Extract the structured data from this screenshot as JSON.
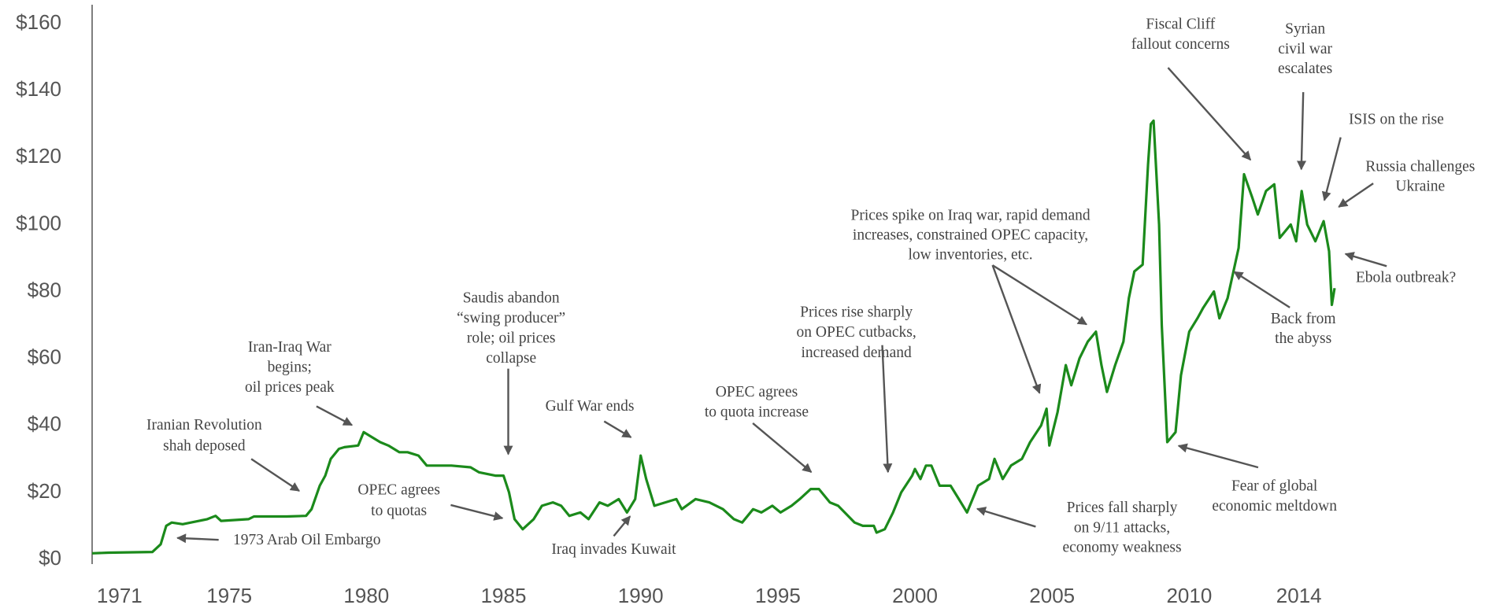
{
  "chart_data": {
    "type": "line",
    "color": "#1b8a1b",
    "x": [
      1970.0,
      1970.6,
      1972.2,
      1972.5,
      1972.7,
      1972.9,
      1973.3,
      1973.6,
      1974.2,
      1974.5,
      1974.7,
      1975.7,
      1975.9,
      1977.1,
      1977.8,
      1978.0,
      1978.3,
      1978.5,
      1978.7,
      1979.0,
      1979.2,
      1979.7,
      1979.9,
      1980.1,
      1980.5,
      1980.8,
      1981.2,
      1981.5,
      1981.9,
      1982.2,
      1982.6,
      1983.1,
      1983.8,
      1984.1,
      1984.7,
      1985.0,
      1985.2,
      1985.4,
      1985.7,
      1986.1,
      1986.4,
      1986.8,
      1987.1,
      1987.4,
      1987.8,
      1988.1,
      1988.5,
      1988.8,
      1989.2,
      1989.5,
      1989.8,
      1990.0,
      1990.2,
      1990.5,
      1990.9,
      1991.3,
      1991.5,
      1992.0,
      1992.5,
      1993.0,
      1993.4,
      1993.7,
      1994.1,
      1994.4,
      1994.8,
      1995.1,
      1995.5,
      1995.8,
      1996.2,
      1996.5,
      1996.9,
      1997.2,
      1997.8,
      1998.1,
      1998.5,
      1998.6,
      1998.9,
      1999.2,
      1999.5,
      1999.9,
      2000.0,
      2000.2,
      2000.4,
      2000.6,
      2000.9,
      2001.3,
      2001.6,
      2001.9,
      2002.0,
      2002.3,
      2002.7,
      2002.9,
      2003.2,
      2003.5,
      2003.9,
      2004.2,
      2004.6,
      2004.8,
      2004.9,
      2005.2,
      2005.5,
      2005.7,
      2006.0,
      2006.3,
      2006.6,
      2006.8,
      2007.0,
      2007.3,
      2007.6,
      2007.8,
      2008.0,
      2008.3,
      2008.5,
      2008.6,
      2008.7,
      2008.9,
      2009.0,
      2009.2,
      2009.5,
      2009.7,
      2010.0,
      2010.3,
      2010.5,
      2010.9,
      2011.1,
      2011.4,
      2011.8,
      2012.0,
      2012.3,
      2012.5,
      2012.8,
      2013.1,
      2013.3,
      2013.7,
      2013.9,
      2014.1,
      2014.3,
      2014.6,
      2014.9,
      2015.1,
      2015.2,
      2015.3
    ],
    "values": [
      1.8,
      2.0,
      2.2,
      4.5,
      10,
      11,
      10.5,
      11,
      12,
      13,
      11.5,
      12,
      12.8,
      12.8,
      13,
      15,
      22,
      25,
      30,
      33,
      33.5,
      34,
      38,
      37,
      35,
      34,
      32,
      32,
      31,
      28,
      28,
      28,
      27.5,
      26,
      25,
      25,
      20,
      12,
      9,
      12,
      16,
      17,
      16,
      13,
      14,
      12,
      17,
      16,
      18,
      14,
      18,
      31,
      24,
      16,
      17,
      18,
      15,
      18,
      17,
      15,
      12,
      11,
      15,
      14,
      16,
      14,
      16,
      18,
      21,
      21,
      17,
      16,
      11,
      10,
      10,
      8,
      9,
      14,
      20,
      25,
      27,
      24,
      28,
      28,
      22,
      22,
      18,
      14,
      16,
      22,
      24,
      30,
      24,
      28,
      30,
      35,
      40,
      45,
      34,
      44,
      58,
      52,
      60,
      65,
      68,
      58,
      50,
      58,
      65,
      78,
      86,
      88,
      118,
      130,
      131,
      100,
      70,
      35,
      38,
      55,
      68,
      72,
      75,
      80,
      72,
      78,
      93,
      115,
      108,
      103,
      110,
      112,
      96,
      100,
      95,
      110,
      100,
      95,
      101,
      92,
      76,
      81
    ],
    "xlim": [
      1970,
      2015.3
    ],
    "xticks": [
      1971,
      1975,
      1980,
      1985,
      1990,
      1995,
      2000,
      2005,
      2010,
      2014
    ],
    "ylim": [
      0,
      160
    ],
    "yticks": [
      {
        "value": 0,
        "label": "$0"
      },
      {
        "value": 20,
        "label": "$20"
      },
      {
        "value": 40,
        "label": "$40"
      },
      {
        "value": 60,
        "label": "$60"
      },
      {
        "value": 80,
        "label": "$80"
      },
      {
        "value": 100,
        "label": "$100"
      },
      {
        "value": 120,
        "label": "$120"
      },
      {
        "value": 140,
        "label": "$140"
      },
      {
        "value": 160,
        "label": "$160"
      }
    ],
    "annotations": [
      {
        "lines": [
          "1973 Arab Oil Embargo"
        ]
      },
      {
        "lines": [
          "Iranian Revolution",
          "shah deposed"
        ]
      },
      {
        "lines": [
          "Iran-Iraq War",
          "begins;",
          "oil prices peak"
        ]
      },
      {
        "lines": [
          "OPEC agrees",
          "to quotas"
        ]
      },
      {
        "lines": [
          "Saudis abandon",
          "“swing producer”",
          "role; oil prices",
          "collapse"
        ]
      },
      {
        "lines": [
          "Gulf War ends"
        ]
      },
      {
        "lines": [
          "Iraq invades Kuwait"
        ]
      },
      {
        "lines": [
          "OPEC agrees",
          "to quota increase"
        ]
      },
      {
        "lines": [
          "Prices rise sharply",
          "on OPEC cutbacks,",
          "increased demand"
        ]
      },
      {
        "lines": [
          "Prices spike on Iraq war, rapid demand",
          "increases, constrained OPEC capacity,",
          "low inventories, etc."
        ]
      },
      {
        "lines": [
          "Prices fall sharply",
          "on 9/11 attacks,",
          "economy weakness"
        ]
      },
      {
        "lines": [
          "Fiscal Cliff",
          "fallout concerns"
        ]
      },
      {
        "lines": [
          "Syrian",
          "civil war",
          "escalates"
        ]
      },
      {
        "lines": [
          "ISIS on the rise"
        ]
      },
      {
        "lines": [
          "Russia challenges",
          "Ukraine"
        ]
      },
      {
        "lines": [
          "Ebola outbreak?"
        ]
      },
      {
        "lines": [
          "Back from",
          "the abyss"
        ]
      },
      {
        "lines": [
          "Fear of global",
          "economic meltdown"
        ]
      }
    ]
  }
}
